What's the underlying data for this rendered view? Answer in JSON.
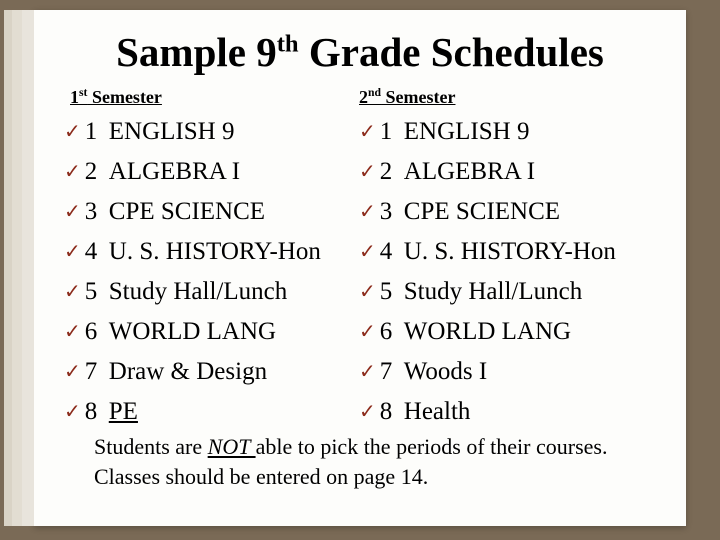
{
  "title_pre": "Sample 9",
  "title_sup": "th",
  "title_post": " Grade Schedules",
  "sem1_label_pre": "1",
  "sem1_label_sup": "st",
  "sem1_label_post": " Semester",
  "sem2_label_pre": "2",
  "sem2_label_sup": "nd",
  "sem2_label_post": " Semester",
  "sem1": [
    {
      "n": "1",
      "c": "ENGLISH 9",
      "ul": false
    },
    {
      "n": "2",
      "c": "ALGEBRA  I",
      "ul": false
    },
    {
      "n": "3",
      "c": "CPE SCIENCE",
      "ul": false
    },
    {
      "n": "4",
      "c": "U. S. HISTORY-Hon",
      "ul": false
    },
    {
      "n": "5",
      "c": "Study Hall/Lunch",
      "ul": false
    },
    {
      "n": "6",
      "c": "WORLD  LANG",
      "ul": false
    },
    {
      "n": "7",
      "c": "Draw & Design",
      "ul": false
    },
    {
      "n": "8",
      "c": "PE",
      "ul": true
    }
  ],
  "sem2": [
    {
      "n": "1",
      "c": "ENGLISH 9",
      "ul": false
    },
    {
      "n": "2",
      "c": "ALGEBRA  I",
      "ul": false
    },
    {
      "n": "3",
      "c": "CPE SCIENCE",
      "ul": false
    },
    {
      "n": "4",
      "c": " U. S. HISTORY-Hon",
      "ul": false
    },
    {
      "n": "5",
      "c": " Study Hall/Lunch",
      "ul": false
    },
    {
      "n": "6",
      "c": " WORLD LANG",
      "ul": false
    },
    {
      "n": "7",
      "c": " Woods I",
      "ul": false
    },
    {
      "n": "8",
      "c": " Health",
      "ul": false
    }
  ],
  "footer1a": "Students are ",
  "footer1_not": "NOT ",
  "footer1b": "able to pick the periods of their courses.",
  "footer2": "Classes should be entered on page 14.",
  "bullet_glyph": "✓",
  "colors": {
    "page_bg": "#fdfdfb",
    "desk_bg": "#7a6a56",
    "bullet": "#8b2a1a",
    "text": "#000000"
  }
}
